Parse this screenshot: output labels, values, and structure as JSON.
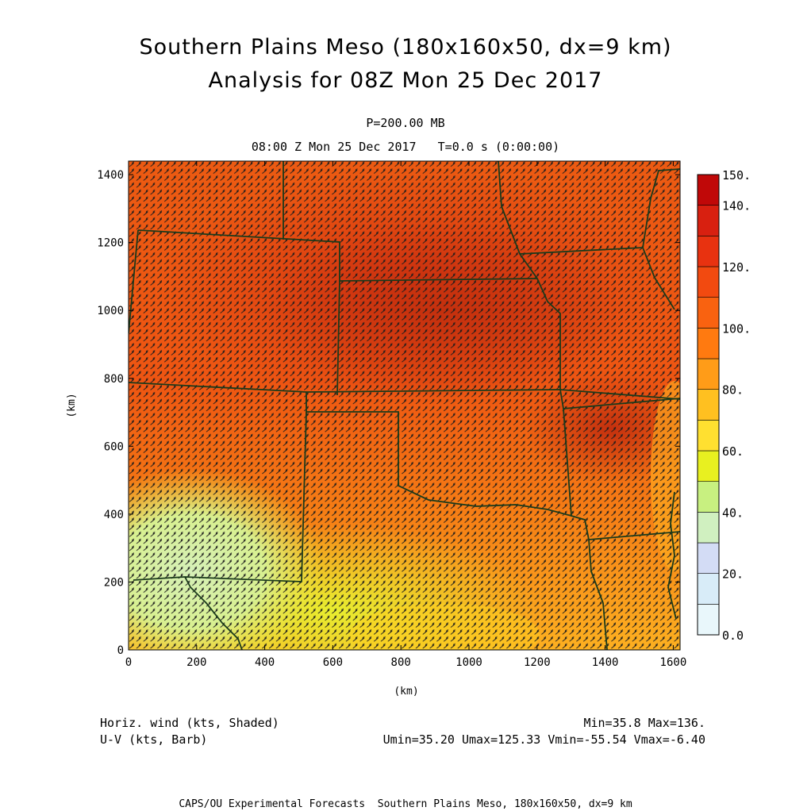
{
  "title_line1": "Southern Plains Meso (180x160x50, dx=9 km)",
  "title_line2": "Analysis for 08Z Mon 25 Dec 2017",
  "level_label": "P=200.00 MB",
  "time_label": "08:00 Z Mon 25 Dec 2017   T=0.0 s (0:00:00)",
  "map": {
    "xlabel": "(km)",
    "ylabel": "(km)",
    "xlim": [
      0,
      1620
    ],
    "ylim": [
      0,
      1440
    ],
    "x_ticks": [
      "0",
      "200",
      "400",
      "600",
      "800",
      "1000",
      "1200",
      "1400",
      "1600"
    ],
    "y_ticks": [
      "0",
      "200",
      "400",
      "600",
      "800",
      "1000",
      "1200",
      "1400"
    ]
  },
  "colorbar": {
    "labels": [
      "0.0",
      "20.",
      "40.",
      "60.",
      "80.",
      "100.",
      "120.",
      "140.",
      "150."
    ],
    "colors": [
      "#e9f7fb",
      "#d8ecf8",
      "#d3dcf5",
      "#d0f0c0",
      "#c8f080",
      "#e8f020",
      "#ffe030",
      "#ffc020",
      "#ff9c18",
      "#ff7a10",
      "#f96210",
      "#f24a10",
      "#e83210",
      "#d82010",
      "#c00808"
    ]
  },
  "footer": {
    "left_line1": "Horiz. wind (kts, Shaded)",
    "left_line2": "U-V (kts, Barb)",
    "right_line1": "Min=35.8 Max=136.",
    "right_line2": "Umin=35.20 Umax=125.33 Vmin=-55.54 Vmax=-6.40"
  },
  "credit": "CAPS/OU Experimental Forecasts  Southern Plains Meso, 180x160x50, dx=9 km"
}
